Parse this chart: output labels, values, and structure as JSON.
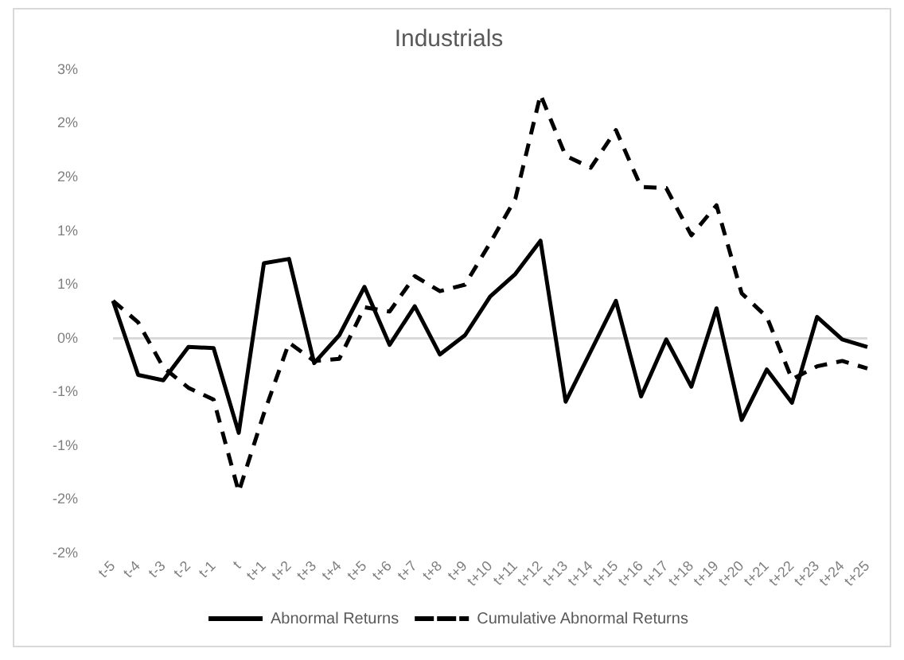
{
  "chart_data": {
    "type": "line",
    "title": "Industrials",
    "categories": [
      "t-5",
      "t-4",
      "t-3",
      "t-2",
      "t-1",
      "t",
      "t+1",
      "t+2",
      "t+3",
      "t+4",
      "t+5",
      "t+6",
      "t+7",
      "t+8",
      "t+9",
      "t+10",
      "t+11",
      "t+12",
      "t+13",
      "t+14",
      "t+15",
      "t+16",
      "t+17",
      "t+18",
      "t+19",
      "t+20",
      "t+21",
      "t+22",
      "t+23",
      "t+24",
      "t+25"
    ],
    "series": [
      {
        "name": "Abnormal Returns",
        "color": "#000000",
        "line_style": "solid",
        "values": [
          0.35,
          -0.34,
          -0.39,
          -0.08,
          -0.09,
          -0.88,
          0.7,
          0.74,
          -0.23,
          0.03,
          0.48,
          -0.06,
          0.3,
          -0.15,
          0.03,
          0.39,
          0.6,
          0.91,
          -0.59,
          -0.12,
          0.35,
          -0.54,
          -0.01,
          -0.45,
          0.28,
          -0.76,
          -0.29,
          -0.6,
          0.2,
          -0.01,
          -0.08
        ]
      },
      {
        "name": "Cumulative Abnormal Returns",
        "color": "#000000",
        "line_style": "dashed",
        "values": [
          0.35,
          0.15,
          -0.27,
          -0.46,
          -0.57,
          -1.43,
          -0.7,
          -0.04,
          -0.21,
          -0.19,
          0.29,
          0.25,
          0.58,
          0.44,
          0.5,
          0.89,
          1.3,
          2.27,
          1.7,
          1.59,
          1.94,
          1.41,
          1.4,
          0.96,
          1.24,
          0.42,
          0.2,
          -0.38,
          -0.26,
          -0.21,
          -0.28
        ]
      }
    ],
    "ylim": [
      -2,
      2.5
    ],
    "yticks": [
      {
        "value": -2,
        "label": "-2%"
      },
      {
        "value": -1.5,
        "label": "-2%"
      },
      {
        "value": -1,
        "label": "-1%"
      },
      {
        "value": -0.5,
        "label": "-1%"
      },
      {
        "value": 0,
        "label": "0%"
      },
      {
        "value": 0.5,
        "label": "1%"
      },
      {
        "value": 1,
        "label": "1%"
      },
      {
        "value": 1.5,
        "label": "2%"
      },
      {
        "value": 2,
        "label": "2%"
      },
      {
        "value": 2.5,
        "label": "3%"
      }
    ],
    "ref_lines": [
      {
        "axis": "y",
        "value": 0,
        "color": "#d9d9d9"
      }
    ],
    "grid": false,
    "legend": "bottom",
    "marker": "none"
  }
}
